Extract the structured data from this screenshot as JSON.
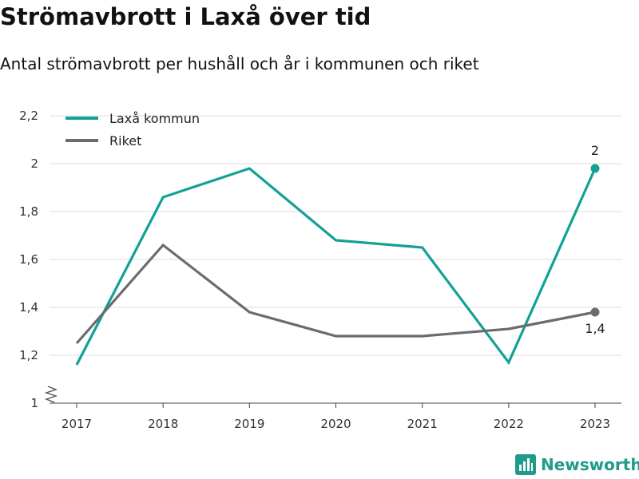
{
  "header": {
    "title": "Strömavbrott i Laxå över tid",
    "subtitle": "Antal strömavbrott per hushåll och år i kommunen och riket"
  },
  "brand": {
    "name": "Newsworthy",
    "icon": "newsworthy-logo-icon",
    "color": "#1e9b8a"
  },
  "chart_data": {
    "type": "line",
    "categories": [
      "2017",
      "2018",
      "2019",
      "2020",
      "2021",
      "2022",
      "2023"
    ],
    "series": [
      {
        "name": "Laxå kommun",
        "color": "#12a195",
        "values": [
          1.16,
          1.86,
          1.98,
          1.68,
          1.65,
          1.17,
          1.98
        ],
        "end_label": "2"
      },
      {
        "name": "Riket",
        "color": "#6d6b6f",
        "values": [
          1.25,
          1.66,
          1.38,
          1.28,
          1.28,
          1.31,
          1.38
        ],
        "end_label": "1,4"
      }
    ],
    "ylim": [
      1,
      2.2
    ],
    "yticks": [
      "1",
      "1,2",
      "1,4",
      "1,6",
      "1,8",
      "2",
      "2,2"
    ],
    "yaxis_break": true,
    "grid": true,
    "legend_position": "top-left"
  }
}
